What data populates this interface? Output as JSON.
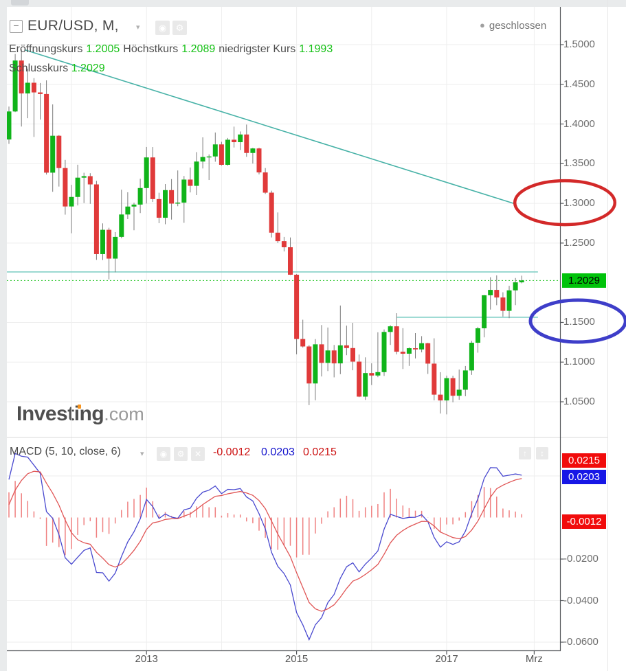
{
  "icons": {
    "minus": "−",
    "caret": "▾",
    "eye": "◉",
    "gear": "⚙",
    "close": "✕",
    "arrow_up": "↑",
    "arrow_updown": "↕",
    "dot": "●"
  },
  "colors": {
    "candle_up": "#10b41a",
    "candle_down": "#e03a3a",
    "wick": "#7a7a7a",
    "grid": "#eeeeee",
    "axis_line": "#54575b",
    "trendline_teal": "#47b2a7",
    "hline_teal": "#84d0c7",
    "dotted_green": "#2bc62b",
    "last_price_bg": "#00c30a",
    "macd_line_blue": "#4848cf",
    "signal_line_red": "#e05555",
    "histogram_red": "#ef8080",
    "label_red_bg": "#f10c0c",
    "label_blue_bg": "#1717e6",
    "ellipse_red": "#d32929",
    "ellipse_blue": "#3e3ec9"
  },
  "header": {
    "symbol_title": "EUR/USD, M,",
    "status": "geschlossen",
    "open_label": "Eröffnungskurs",
    "open": "1.2005",
    "high_label": "Höchstkurs",
    "high": "1.2089",
    "low_label": "niedrigster Kurs",
    "low": "1.1993",
    "close_label": "Schlusskurs",
    "close": "1.2029"
  },
  "watermark": {
    "brand": "Investing",
    "tld": ".com"
  },
  "price_axis": {
    "last_price": "1.2029"
  },
  "macd": {
    "title": "MACD (5, 10, close, 6)",
    "value_hist": "-0.0012",
    "value_macd": "0.0203",
    "value_signal": "0.0215",
    "label_signal": "0.0215",
    "label_macd": "0.0203",
    "label_hist": "-0.0012"
  },
  "chart_data": [
    {
      "type": "candlestick",
      "title": "EUR/USD monthly",
      "x_start": "2011-03",
      "interval": "1M",
      "ylim": [
        1.007,
        1.548
      ],
      "grid": true,
      "last_close": 1.2029,
      "y_ticks": [
        {
          "label": "1.5000",
          "value": 1.5
        },
        {
          "label": "1.4500",
          "value": 1.45
        },
        {
          "label": "1.4000",
          "value": 1.4
        },
        {
          "label": "1.3500",
          "value": 1.35
        },
        {
          "label": "1.3000",
          "value": 1.3
        },
        {
          "label": "1.2500",
          "value": 1.25
        },
        {
          "label": "1.1500",
          "value": 1.15
        },
        {
          "label": "1.1000",
          "value": 1.1
        },
        {
          "label": "1.0500",
          "value": 1.05
        }
      ],
      "x_labels": [
        {
          "label": "2013",
          "m": 22
        },
        {
          "label": "2015",
          "m": 46
        },
        {
          "label": "2017",
          "m": 70
        },
        {
          "label": "Mrz",
          "m": 84
        }
      ],
      "grid_months": [
        10,
        22,
        34,
        46,
        58,
        70,
        84
      ],
      "ohlc": [
        [
          1.3805,
          1.422,
          1.375,
          1.4158
        ],
        [
          1.4158,
          1.4882,
          1.415,
          1.48
        ],
        [
          1.48,
          1.494,
          1.3968,
          1.4385
        ],
        [
          1.4385,
          1.4696,
          1.4073,
          1.452
        ],
        [
          1.452,
          1.4578,
          1.3837,
          1.4398
        ],
        [
          1.4398,
          1.4517,
          1.4056,
          1.4378
        ],
        [
          1.4378,
          1.455,
          1.3363,
          1.3387
        ],
        [
          1.3387,
          1.4247,
          1.3146,
          1.3852
        ],
        [
          1.3852,
          1.386,
          1.3212,
          1.3445
        ],
        [
          1.3445,
          1.3548,
          1.2858,
          1.2961
        ],
        [
          1.2961,
          1.3234,
          1.2624,
          1.3081
        ],
        [
          1.3081,
          1.3487,
          1.2974,
          1.3324
        ],
        [
          1.3324,
          1.3386,
          1.3004,
          1.3343
        ],
        [
          1.3343,
          1.338,
          1.2994,
          1.3239
        ],
        [
          1.3239,
          1.3284,
          1.2288,
          1.2361
        ],
        [
          1.2361,
          1.2748,
          1.2286,
          1.2667
        ],
        [
          1.2667,
          1.2693,
          1.2042,
          1.2304
        ],
        [
          1.2304,
          1.2638,
          1.2132,
          1.2578
        ],
        [
          1.2578,
          1.3172,
          1.256,
          1.286
        ],
        [
          1.286,
          1.314,
          1.2802,
          1.296
        ],
        [
          1.296,
          1.3009,
          1.2661,
          1.2985
        ],
        [
          1.2985,
          1.331,
          1.2878,
          1.3193
        ],
        [
          1.3193,
          1.3711,
          1.2998,
          1.3579
        ],
        [
          1.3579,
          1.371,
          1.3018,
          1.3054
        ],
        [
          1.3054,
          1.3134,
          1.275,
          1.2819
        ],
        [
          1.2819,
          1.3243,
          1.2737,
          1.3167
        ],
        [
          1.3167,
          1.3306,
          1.2796,
          1.2997
        ],
        [
          1.2997,
          1.3415,
          1.2964,
          1.301
        ],
        [
          1.301,
          1.3345,
          1.2755,
          1.33
        ],
        [
          1.33,
          1.3452,
          1.3138,
          1.3221
        ],
        [
          1.3221,
          1.3646,
          1.3105,
          1.3527
        ],
        [
          1.3527,
          1.3832,
          1.344,
          1.3584
        ],
        [
          1.3584,
          1.3617,
          1.3295,
          1.3591
        ],
        [
          1.3591,
          1.3893,
          1.3525,
          1.3743
        ],
        [
          1.3743,
          1.3776,
          1.3477,
          1.3486
        ],
        [
          1.3486,
          1.3824,
          1.3475,
          1.3802
        ],
        [
          1.3802,
          1.3967,
          1.3704,
          1.3771
        ],
        [
          1.3771,
          1.3906,
          1.3673,
          1.3868
        ],
        [
          1.3868,
          1.3993,
          1.3586,
          1.3635
        ],
        [
          1.3635,
          1.37,
          1.3502,
          1.3692
        ],
        [
          1.3692,
          1.3701,
          1.3366,
          1.339
        ],
        [
          1.339,
          1.3445,
          1.3119,
          1.3135
        ],
        [
          1.3135,
          1.316,
          1.2571,
          1.2631
        ],
        [
          1.2631,
          1.2886,
          1.25,
          1.2524
        ],
        [
          1.2524,
          1.2578,
          1.2394,
          1.2447
        ],
        [
          1.2447,
          1.257,
          1.2097,
          1.2101
        ],
        [
          1.2101,
          1.2109,
          1.1098,
          1.1291
        ],
        [
          1.1291,
          1.1534,
          1.1184,
          1.1197
        ],
        [
          1.1197,
          1.1214,
          1.0458,
          1.0731
        ],
        [
          1.0731,
          1.129,
          1.0519,
          1.1224
        ],
        [
          1.1224,
          1.1467,
          1.0819,
          1.099
        ],
        [
          1.099,
          1.1436,
          1.0887,
          1.1147
        ],
        [
          1.1147,
          1.1216,
          1.0808,
          1.0984
        ],
        [
          1.0984,
          1.1713,
          1.0848,
          1.1211
        ],
        [
          1.1211,
          1.146,
          1.1087,
          1.1177
        ],
        [
          1.1177,
          1.1495,
          1.0897,
          1.1006
        ],
        [
          1.1006,
          1.1095,
          1.0558,
          1.0565
        ],
        [
          1.0565,
          1.106,
          1.0524,
          1.0862
        ],
        [
          1.0862,
          1.0985,
          1.0711,
          1.0831
        ],
        [
          1.0831,
          1.1376,
          1.081,
          1.0874
        ],
        [
          1.0874,
          1.1412,
          1.0826,
          1.138
        ],
        [
          1.138,
          1.1465,
          1.1217,
          1.1451
        ],
        [
          1.1451,
          1.1616,
          1.1097,
          1.1131
        ],
        [
          1.1131,
          1.1428,
          1.0913,
          1.1106
        ],
        [
          1.1106,
          1.1186,
          1.0952,
          1.1175
        ],
        [
          1.1175,
          1.1366,
          1.1046,
          1.116
        ],
        [
          1.116,
          1.1327,
          1.1123,
          1.1238
        ],
        [
          1.1238,
          1.1243,
          1.0851,
          1.0981
        ],
        [
          1.0981,
          1.13,
          1.0518,
          1.059
        ],
        [
          1.059,
          1.0873,
          1.0352,
          1.0517
        ],
        [
          1.0517,
          1.083,
          1.0341,
          1.0798
        ],
        [
          1.0798,
          1.0829,
          1.0494,
          1.0576
        ],
        [
          1.0576,
          1.0906,
          1.0525,
          1.0652
        ],
        [
          1.0652,
          1.0951,
          1.057,
          1.0895
        ],
        [
          1.0895,
          1.1268,
          1.0839,
          1.1244
        ],
        [
          1.1244,
          1.1445,
          1.1119,
          1.1426
        ],
        [
          1.1426,
          1.1846,
          1.1312,
          1.1842
        ],
        [
          1.1842,
          1.2069,
          1.1662,
          1.191
        ],
        [
          1.191,
          1.2092,
          1.1717,
          1.1814
        ],
        [
          1.1814,
          1.188,
          1.1574,
          1.1646
        ],
        [
          1.1646,
          1.1961,
          1.1554,
          1.1904
        ],
        [
          1.1904,
          1.206,
          1.1718,
          1.2005
        ],
        [
          1.2005,
          1.2089,
          1.1993,
          1.2029
        ]
      ],
      "annotations": {
        "trendline": {
          "m1": 2.5,
          "p1": 1.4935,
          "m2": 81.0,
          "p2": 1.2992
        },
        "hline_upper": {
          "price": 1.2136,
          "m1": -0.33,
          "m2": 84.6
        },
        "hline_lower": {
          "price": 1.1565,
          "m1": 62.0,
          "m2": 84.6
        },
        "dotted_close": {
          "price": 1.2029
        },
        "ellipse_red": {
          "cm": 88.9,
          "cp": 1.3009,
          "rm": 8.0,
          "rp": 0.0277
        },
        "ellipse_blue": {
          "cm": 91.0,
          "cp": 1.1517,
          "rm": 7.6,
          "rp": 0.0264
        }
      }
    },
    {
      "type": "line",
      "name": "MACD (5, 10, close, 6)",
      "fast": 5,
      "slow": 10,
      "source": "close",
      "smooth": 6,
      "ylim": [
        -0.064,
        0.035
      ],
      "leadin_closes": [
        1.3866,
        1.3623,
        1.351,
        1.3295,
        1.2307,
        1.2238,
        1.305,
        1.2687,
        1.3634,
        1.3945,
        1.2985,
        1.3366,
        1.3692,
        1.3805
      ],
      "y_ticks": [
        {
          "label": "-0.0200",
          "value": -0.02
        },
        {
          "label": "-0.0400",
          "value": -0.04
        },
        {
          "label": "-0.0600",
          "value": -0.06
        }
      ],
      "grid_values": [
        0.02,
        -0.02,
        -0.04,
        -0.06
      ],
      "current": {
        "histogram": -0.0012,
        "macd": 0.0203,
        "signal": 0.0215
      }
    }
  ]
}
